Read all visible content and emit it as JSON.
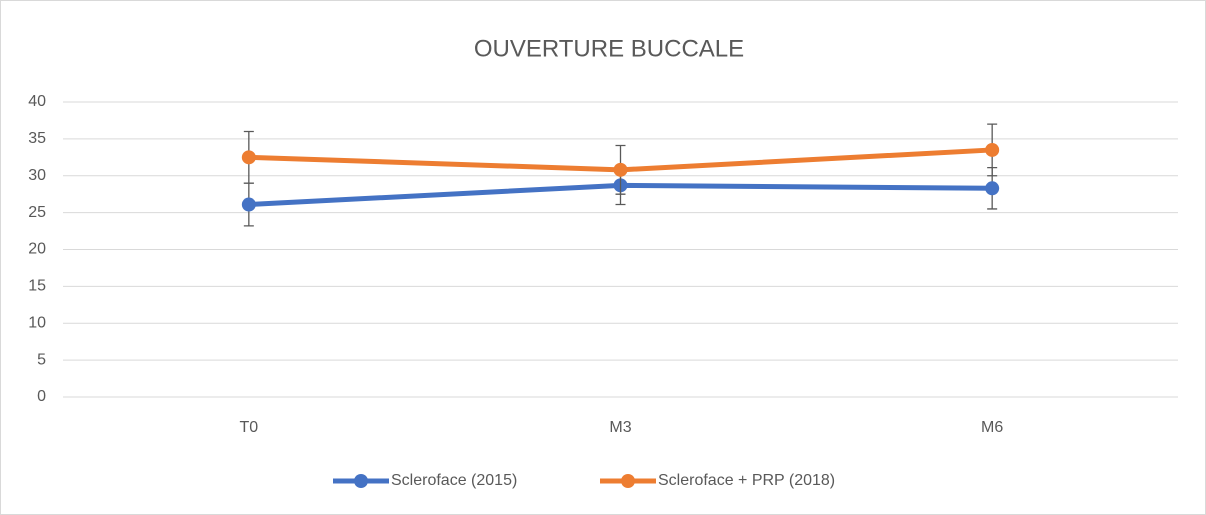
{
  "chart_data": {
    "type": "line",
    "title": "OUVERTURE BUCCALE",
    "categories": [
      "T0",
      "M3",
      "M6"
    ],
    "series": [
      {
        "name": "Scleroface (2015)",
        "color": "#4472c4",
        "values": [
          26.1,
          28.7,
          28.3
        ],
        "errors": [
          2.9,
          2.6,
          2.8
        ]
      },
      {
        "name": "Scleroface + PRP (2018)",
        "color": "#ed7d31",
        "values": [
          32.5,
          30.8,
          33.5
        ],
        "errors": [
          3.5,
          3.3,
          3.5
        ]
      }
    ],
    "ylim": [
      0,
      40
    ],
    "yticks": [
      0,
      5,
      10,
      15,
      20,
      25,
      30,
      35,
      40
    ],
    "grid": true,
    "legend": "bottom"
  }
}
